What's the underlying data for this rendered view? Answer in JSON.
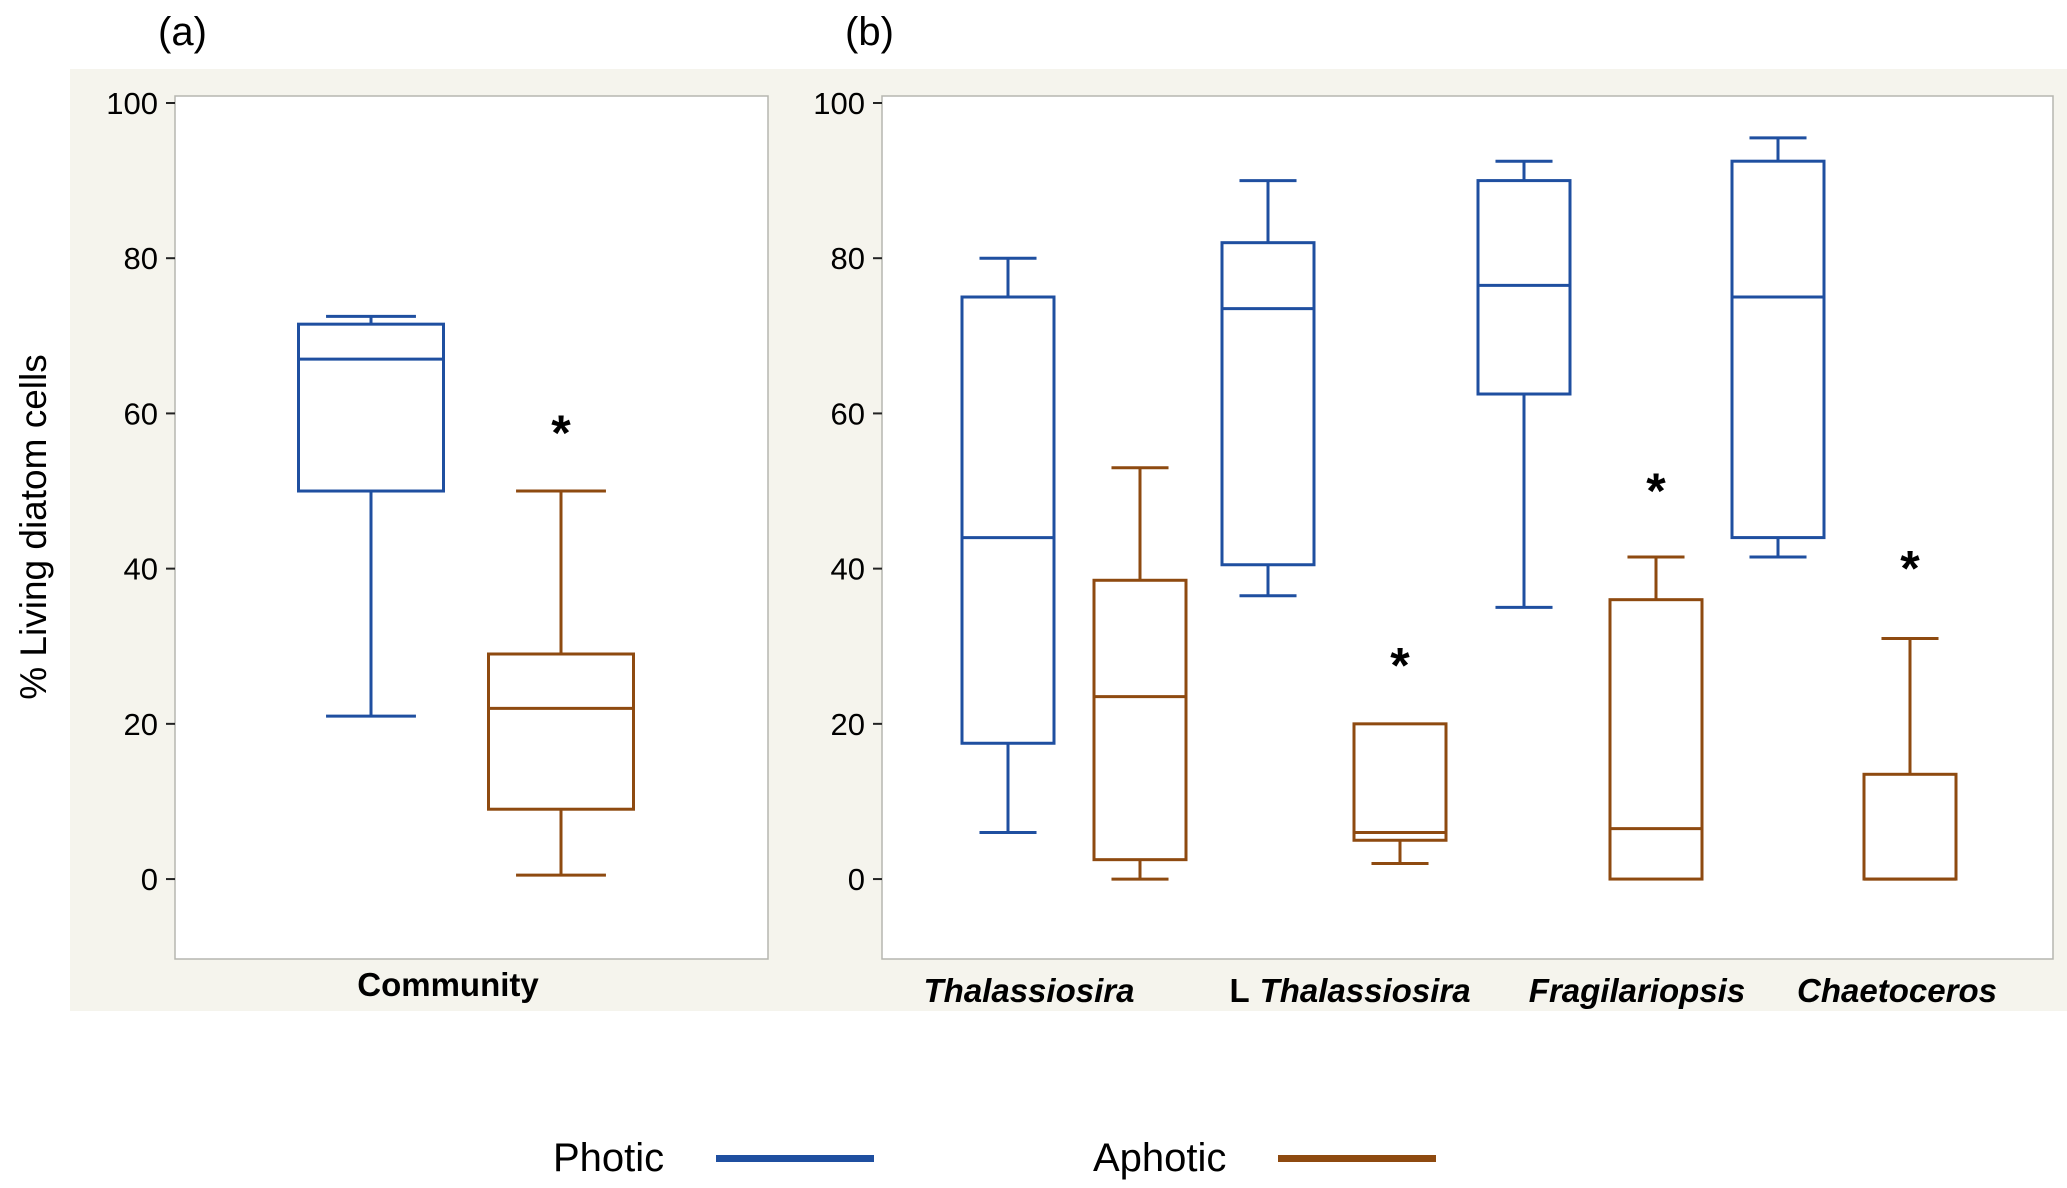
{
  "figure": {
    "panels": [
      {
        "label": "(a)"
      },
      {
        "label": "(b)"
      }
    ],
    "ylabel": "% Living diatom cells",
    "star_symbol": "*",
    "legend": [
      {
        "label": "Photic",
        "color": "#1F4FA0"
      },
      {
        "label": "Aphotic",
        "color": "#8E4A10"
      }
    ]
  },
  "chart_data": [
    {
      "type": "box",
      "panel": "(a)",
      "title": "",
      "xlabel": "",
      "ylabel": "% Living diatom cells",
      "ylim": [
        -10.3,
        100.9
      ],
      "yticks": [
        0,
        20,
        40,
        60,
        80,
        100
      ],
      "grid": false,
      "categories": [
        {
          "prefix": "",
          "label": "Community",
          "italic": false
        }
      ],
      "series": [
        {
          "name": "Photic",
          "color": "#1F4FA0",
          "boxes": [
            {
              "category": "Community",
              "whisker_low": 21,
              "q1": 50,
              "median": 67,
              "q3": 71.5,
              "whisker_high": 72.5,
              "star": false
            }
          ]
        },
        {
          "name": "Aphotic",
          "color": "#8E4A10",
          "boxes": [
            {
              "category": "Community",
              "whisker_low": 0.5,
              "q1": 9,
              "median": 22,
              "q3": 29,
              "whisker_high": 50,
              "star": true,
              "star_y": 57.5
            }
          ]
        }
      ]
    },
    {
      "type": "box",
      "panel": "(b)",
      "title": "",
      "xlabel": "",
      "ylabel": "",
      "ylim": [
        -10.3,
        100.9
      ],
      "yticks": [
        0,
        20,
        40,
        60,
        80,
        100
      ],
      "grid": false,
      "categories": [
        {
          "prefix": "",
          "label": "Thalassiosira",
          "italic": true
        },
        {
          "prefix": "L",
          "label": "Thalassiosira",
          "italic": true
        },
        {
          "prefix": "",
          "label": "Fragilariopsis",
          "italic": true
        },
        {
          "prefix": "",
          "label": "Chaetoceros",
          "italic": true
        }
      ],
      "series": [
        {
          "name": "Photic",
          "color": "#1F4FA0",
          "boxes": [
            {
              "category": "Thalassiosira",
              "whisker_low": 6,
              "q1": 17.5,
              "median": 44,
              "q3": 75,
              "whisker_high": 80,
              "star": false
            },
            {
              "category": "L Thalassiosira",
              "whisker_low": 36.5,
              "q1": 40.5,
              "median": 73.5,
              "q3": 82,
              "whisker_high": 90,
              "star": false
            },
            {
              "category": "Fragilariopsis",
              "whisker_low": 35,
              "q1": 62.5,
              "median": 76.5,
              "q3": 90,
              "whisker_high": 92.5,
              "star": false
            },
            {
              "category": "Chaetoceros",
              "whisker_low": 41.5,
              "q1": 44,
              "median": 75,
              "q3": 92.5,
              "whisker_high": 95.5,
              "star": false
            }
          ]
        },
        {
          "name": "Aphotic",
          "color": "#8E4A10",
          "boxes": [
            {
              "category": "Thalassiosira",
              "whisker_low": 0,
              "q1": 2.5,
              "median": 23.5,
              "q3": 38.5,
              "whisker_high": 53,
              "star": false
            },
            {
              "category": "L Thalassiosira",
              "whisker_low": 2,
              "q1": 5,
              "median": 6,
              "q3": 20,
              "whisker_high": 20,
              "star": true,
              "star_y": 27.5
            },
            {
              "category": "Fragilariopsis",
              "whisker_low": 0,
              "q1": 0,
              "median": 6.5,
              "q3": 36,
              "whisker_high": 41.5,
              "star": true,
              "star_y": 50
            },
            {
              "category": "Chaetoceros",
              "whisker_low": 0,
              "q1": 0,
              "median": 0,
              "q3": 13.5,
              "whisker_high": 31,
              "star": true,
              "star_y": 40
            }
          ]
        }
      ]
    }
  ]
}
